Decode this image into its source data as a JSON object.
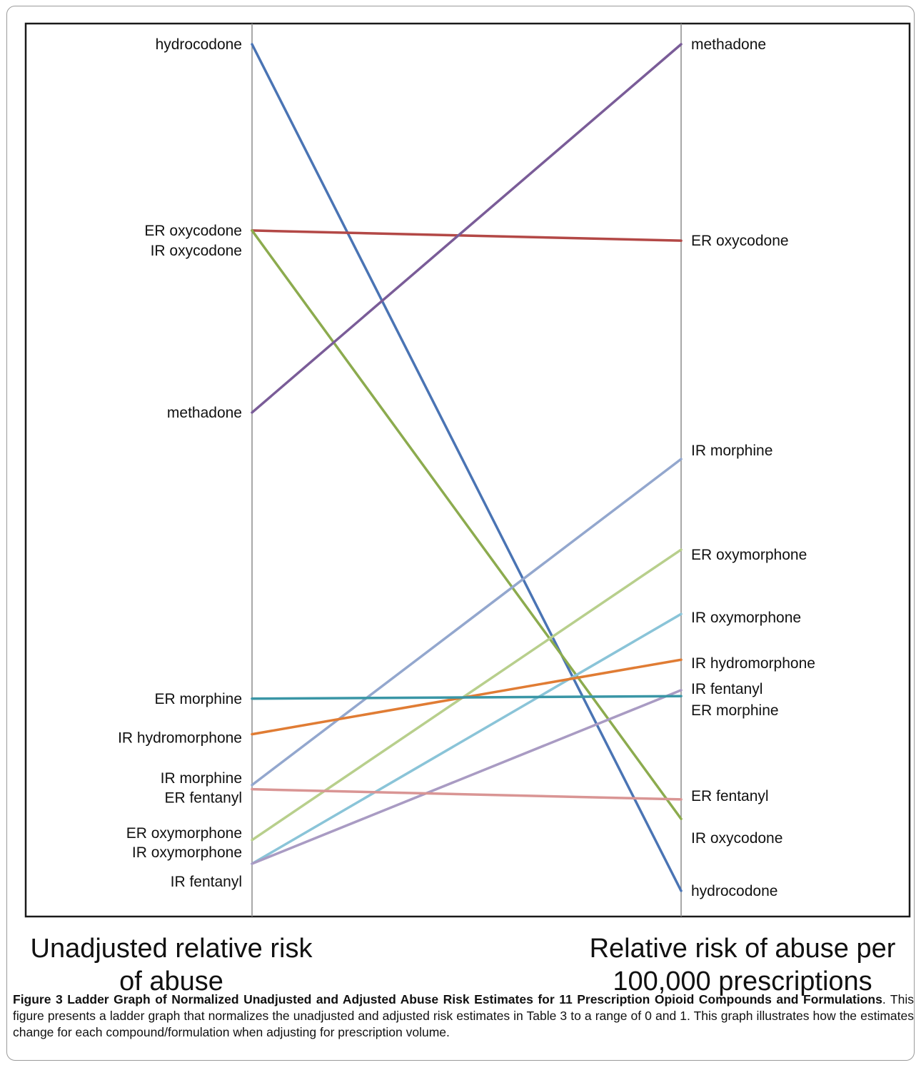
{
  "chart_data": {
    "type": "line",
    "subtype": "ladder",
    "left_axis_label": "Unadjusted relative risk of abuse",
    "right_axis_label": "Relative risk of abuse per 100,000 prescriptions",
    "ylim": [
      0,
      1
    ],
    "grid": false,
    "series": [
      {
        "name": "hydrocodone",
        "color": "#4a74b4",
        "unadjusted": 1.0,
        "adjusted": 0.0,
        "left_label_offset": 0,
        "right_label_offset": 0
      },
      {
        "name": "ER oxycodone",
        "color": "#b34846",
        "unadjusted": 0.78,
        "adjusted": 0.768,
        "left_label_offset": 0,
        "right_label_offset": 0
      },
      {
        "name": "IR oxycodone",
        "color": "#8cab4e",
        "unadjusted": 0.78,
        "adjusted": 0.085,
        "left_label_offset": 28,
        "right_label_offset": 27
      },
      {
        "name": "methadone",
        "color": "#7a5c98",
        "unadjusted": 0.565,
        "adjusted": 1.0,
        "left_label_offset": 0,
        "right_label_offset": 0
      },
      {
        "name": "IR morphine",
        "color": "#93a7ce",
        "unadjusted": 0.125,
        "adjusted": 0.51,
        "left_label_offset": -10,
        "right_label_offset": -12
      },
      {
        "name": "ER oxymorphone",
        "color": "#b8cf8c",
        "unadjusted": 0.06,
        "adjusted": 0.403,
        "left_label_offset": -10,
        "right_label_offset": 7
      },
      {
        "name": "IR oxymorphone",
        "color": "#8ac4d8",
        "unadjusted": 0.032,
        "adjusted": 0.327,
        "left_label_offset": -16,
        "right_label_offset": 5
      },
      {
        "name": "IR hydromorphone",
        "color": "#e07c34",
        "unadjusted": 0.185,
        "adjusted": 0.273,
        "left_label_offset": 5,
        "right_label_offset": 5
      },
      {
        "name": "IR fentanyl",
        "color": "#a99bc3",
        "unadjusted": 0.032,
        "adjusted": 0.237,
        "left_label_offset": 25,
        "right_label_offset": -2
      },
      {
        "name": "ER morphine",
        "color": "#3a96a6",
        "unadjusted": 0.227,
        "adjusted": 0.23,
        "left_label_offset": 0,
        "right_label_offset": 20
      },
      {
        "name": "ER fentanyl",
        "color": "#d99594",
        "unadjusted": 0.12,
        "adjusted": 0.108,
        "left_label_offset": 12,
        "right_label_offset": -5
      }
    ]
  },
  "caption": {
    "label": "Figure 3",
    "title": "Ladder Graph of Normalized Unadjusted and Adjusted Abuse Risk Estimates for 11 Prescription Opioid Compounds and Formulations",
    "text": ". This figure presents a ladder graph that normalizes the unadjusted and adjusted risk estimates in Table 3 to a range of 0 and 1. This graph illustrates how the estimates change for each compound/formulation when adjusting for prescription volume."
  }
}
